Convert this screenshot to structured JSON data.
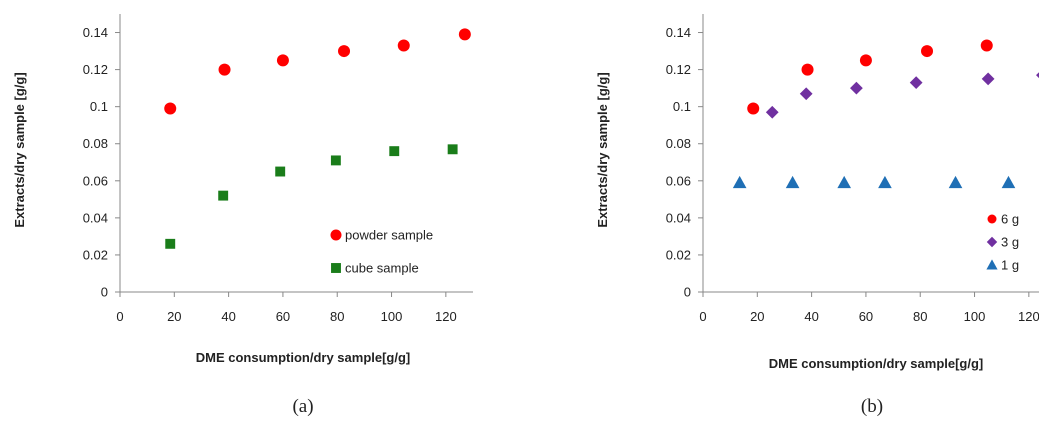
{
  "chart_data": [
    {
      "type": "scatter",
      "panel_label": "(a)",
      "xlabel": "DME consumption/dry sample[g/g]",
      "ylabel": "Extracts/dry sample [g/g]",
      "xlim": [
        0,
        130
      ],
      "ylim": [
        0,
        0.15
      ],
      "xticks": [
        "0",
        "20",
        "40",
        "60",
        "80",
        "100",
        "120"
      ],
      "yticks": [
        "0",
        "0.02",
        "0.04",
        "0.06",
        "0.08",
        "0.1",
        "0.12",
        "0.14"
      ],
      "legend_position": "bottom-right",
      "series": [
        {
          "name": "powder sample",
          "marker": "circle",
          "color": "#ff0000",
          "points": [
            [
              18.5,
              0.099
            ],
            [
              38.5,
              0.12
            ],
            [
              60,
              0.125
            ],
            [
              82.5,
              0.13
            ],
            [
              104.5,
              0.133
            ],
            [
              127,
              0.139
            ]
          ]
        },
        {
          "name": "cube sample",
          "marker": "square",
          "color": "#1a7d1a",
          "points": [
            [
              18.5,
              0.026
            ],
            [
              38,
              0.052
            ],
            [
              59,
              0.065
            ],
            [
              79.5,
              0.071
            ],
            [
              101,
              0.076
            ],
            [
              122.5,
              0.077
            ]
          ]
        }
      ]
    },
    {
      "type": "scatter",
      "panel_label": "(b)",
      "xlabel": "DME consumption/dry sample[g/g]",
      "ylabel": "Extracts/dry sample [g/g]",
      "xlim": [
        0,
        130
      ],
      "ylim": [
        0,
        0.15
      ],
      "xticks": [
        "0",
        "20",
        "40",
        "60",
        "80",
        "100",
        "120"
      ],
      "yticks": [
        "0",
        "0.02",
        "0.04",
        "0.06",
        "0.08",
        "0.1",
        "0.12",
        "0.14"
      ],
      "legend_position": "bottom-right",
      "series": [
        {
          "name": "6 g",
          "marker": "circle",
          "color": "#ff0000",
          "points": [
            [
              18.5,
              0.099
            ],
            [
              38.5,
              0.12
            ],
            [
              60,
              0.125
            ],
            [
              82.5,
              0.13
            ],
            [
              104.5,
              0.133
            ],
            [
              127,
              0.139
            ]
          ]
        },
        {
          "name": "3 g",
          "marker": "diamond",
          "color": "#7030a0",
          "points": [
            [
              25.5,
              0.097
            ],
            [
              38,
              0.107
            ],
            [
              56.5,
              0.11
            ],
            [
              78.5,
              0.113
            ],
            [
              105,
              0.115
            ],
            [
              125,
              0.117
            ]
          ]
        },
        {
          "name": "1 g",
          "marker": "triangle",
          "color": "#1f6fb5",
          "points": [
            [
              13.5,
              0.059
            ],
            [
              33,
              0.059
            ],
            [
              52,
              0.059
            ],
            [
              67,
              0.059
            ],
            [
              93,
              0.059
            ],
            [
              112.5,
              0.059
            ]
          ]
        }
      ]
    }
  ]
}
